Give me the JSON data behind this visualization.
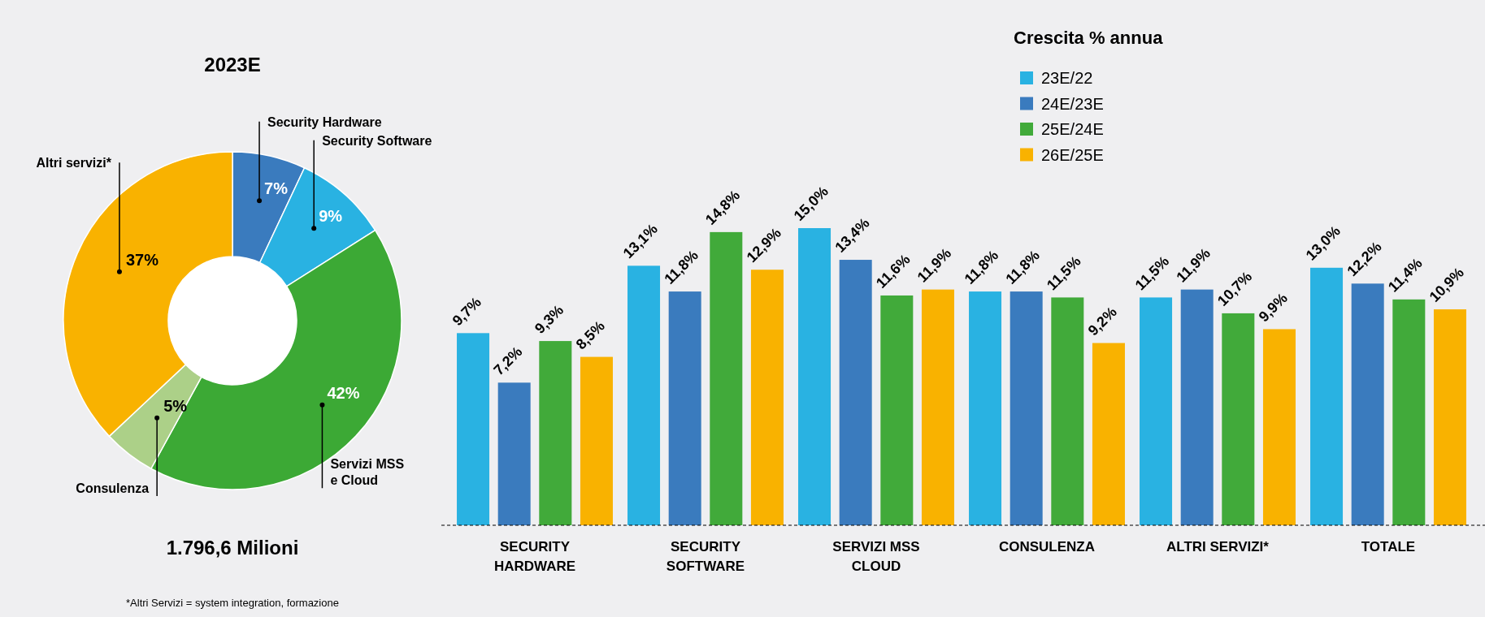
{
  "chart_data": [
    {
      "type": "donut",
      "title": "2023E",
      "categories": [
        "Security Hardware",
        "Security Software",
        "Servizi MSS\ne Cloud",
        "Consulenza",
        "Altri servizi*"
      ],
      "values": [
        7,
        9,
        42,
        5,
        37
      ],
      "colors": [
        "#3a7bbe",
        "#29b2e2",
        "#3ca935",
        "#acd088",
        "#f9b200"
      ],
      "value_labels": [
        "7%",
        "9%",
        "42%",
        "5%",
        "37%"
      ],
      "annotations": [
        "1.796,6 Milioni",
        "*Altri Servizi = system integration, formazione"
      ]
    },
    {
      "type": "bar",
      "legend_title": "Crescita % annua",
      "legend": "top right",
      "tick_labels": "x",
      "categories": [
        "SECURITY\nHARDWARE",
        "SECURITY\nSOFTWARE",
        "SERVIZI MSS\nCLOUD",
        "CONSULENZA",
        "ALTRI SERVIZI*",
        "TOTALE"
      ],
      "series": [
        {
          "name": "23E/22",
          "color": "#29b2e2",
          "values": [
            9.7,
            13.1,
            15.0,
            11.8,
            11.5,
            13.0
          ],
          "value_labels": [
            "9,7%",
            "13,1%",
            "15,0%",
            "11,8%",
            "11,5%",
            "13,0%"
          ]
        },
        {
          "name": "24E/23E",
          "color": "#3a7bbe",
          "values": [
            7.2,
            11.8,
            13.4,
            11.8,
            11.9,
            12.2
          ],
          "value_labels": [
            "7,2%",
            "11,8%",
            "13,4%",
            "11,8%",
            "11,9%",
            "12,2%"
          ]
        },
        {
          "name": "25E/24E",
          "color": "#41aa3a",
          "values": [
            9.3,
            14.8,
            11.6,
            11.5,
            10.7,
            11.4
          ],
          "value_labels": [
            "9,3%",
            "14,8%",
            "11,6%",
            "11,5%",
            "10,7%",
            "11,4%"
          ]
        },
        {
          "name": "26E/25E",
          "color": "#f9b200",
          "values": [
            8.5,
            12.9,
            11.9,
            9.2,
            9.9,
            10.9
          ],
          "value_labels": [
            "8,5%",
            "12,9%",
            "11,9%",
            "9,2%",
            "9,9%",
            "10,9%"
          ]
        }
      ]
    }
  ]
}
